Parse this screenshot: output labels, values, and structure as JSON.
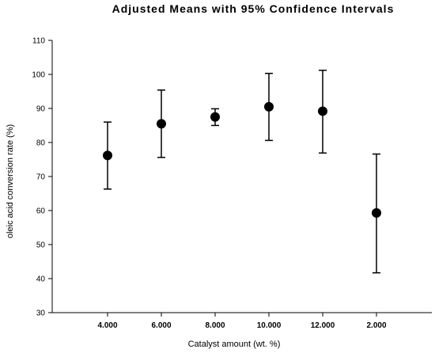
{
  "chart_data": {
    "type": "scatter",
    "title": "Adjusted Means with 95% Confidence Intervals",
    "xlabel": "Catalyst amount (wt. %)",
    "ylabel": "oleic acid conversion rate (%)",
    "categories": [
      "4.000",
      "6.000",
      "8.000",
      "10.000",
      "12.000",
      "2.000"
    ],
    "series": [
      {
        "values": [
          76.2,
          85.5,
          87.5,
          90.5,
          89.2,
          59.3
        ],
        "lower": [
          66.3,
          75.6,
          85.0,
          80.6,
          76.9,
          41.7
        ],
        "upper": [
          86.0,
          95.4,
          89.9,
          100.3,
          101.2,
          76.6
        ]
      }
    ],
    "ylim": [
      30,
      110
    ],
    "yticks": [
      "30",
      "40",
      "50",
      "60",
      "70",
      "80",
      "90",
      "100",
      "110"
    ],
    "grid": false,
    "legend": "none",
    "colors": {
      "marker": "#000000",
      "axis": "#000000"
    }
  }
}
